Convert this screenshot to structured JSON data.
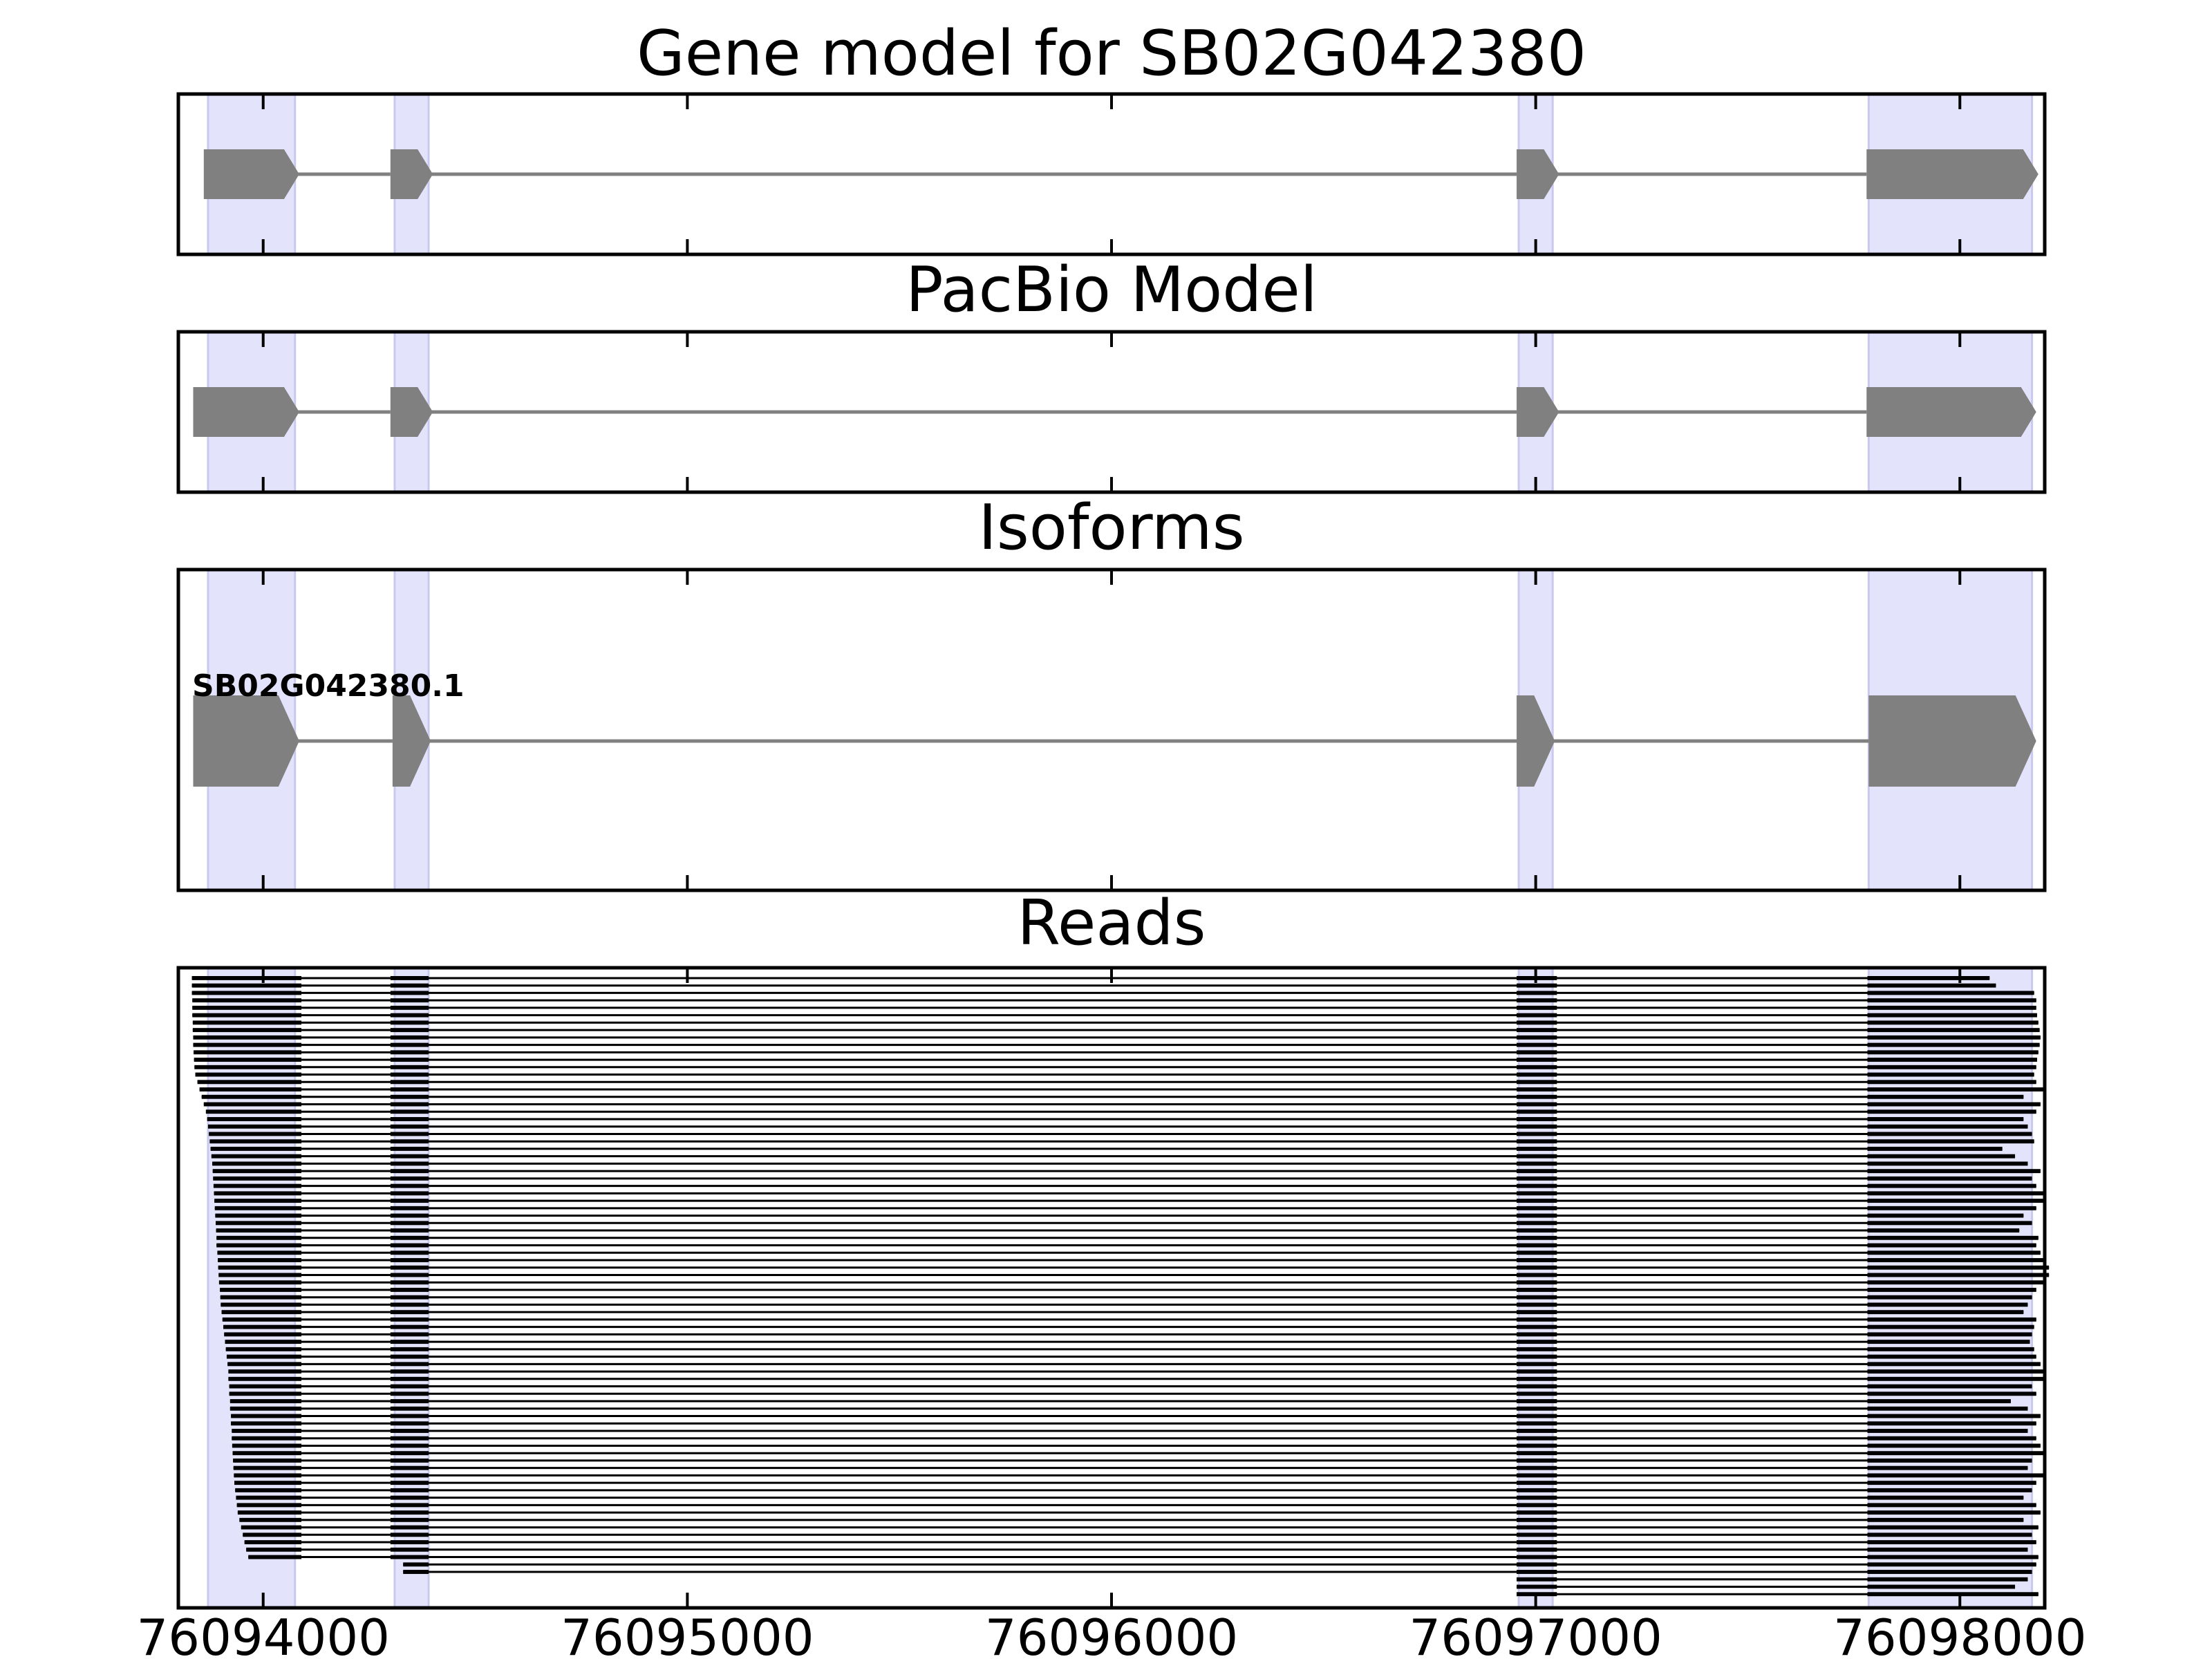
{
  "colors": {
    "exon_fill": "#808080",
    "intron_line": "#808080",
    "highlight": "#e3e3fb",
    "read_fill": "#000000",
    "axes": "#000000"
  },
  "chart_data": {
    "type": "gene_track",
    "xlim": [
      76093800,
      76098200
    ],
    "x_ticks": [
      76094000,
      76095000,
      76096000,
      76097000,
      76098000
    ],
    "x_tick_labels": [
      "76094000",
      "76095000",
      "76096000",
      "76097000",
      "76098000"
    ],
    "highlight_regions": [
      [
        76093870,
        76094075
      ],
      [
        76094310,
        76094390
      ],
      [
        76096960,
        76097040
      ],
      [
        76097785,
        76098170
      ]
    ],
    "panels": [
      {
        "id": "gene-model",
        "title": "Gene model for SB02G042380",
        "style": "thin",
        "exons": [
          [
            76093860,
            76094085
          ],
          [
            76094300,
            76094400
          ],
          [
            76096955,
            76097055
          ],
          [
            76097780,
            76098185
          ]
        ]
      },
      {
        "id": "pacbio-model",
        "title": "PacBio Model",
        "style": "thin",
        "exons": [
          [
            76093835,
            76094085
          ],
          [
            76094300,
            76094400
          ],
          [
            76096955,
            76097055
          ],
          [
            76097780,
            76098180
          ]
        ]
      },
      {
        "id": "isoforms",
        "title": "Isoforms",
        "style": "thick",
        "isoform_label": "SB02G042380.1",
        "exons": [
          [
            76093835,
            76094085
          ],
          [
            76094305,
            76094395
          ],
          [
            76096955,
            76097045
          ],
          [
            76097785,
            76098180
          ]
        ]
      },
      {
        "id": "reads",
        "title": "Reads",
        "style": "reads",
        "read_count": 84,
        "read_starts": [
          76093832,
          76093832,
          76093832,
          76093833,
          76093833,
          76093833,
          76093834,
          76093834,
          76093835,
          76093835,
          76093836,
          76093837,
          76093838,
          76093840,
          76093845,
          76093850,
          76093855,
          76093860,
          76093865,
          76093868,
          76093870,
          76093872,
          76093874,
          76093876,
          76093878,
          76093880,
          76093881,
          76093882,
          76093883,
          76093884,
          76093885,
          76093886,
          76093887,
          76093888,
          76093889,
          76093890,
          76093890,
          76093892,
          76093893,
          76093894,
          76093895,
          76093896,
          76093898,
          76093899,
          76093900,
          76093902,
          76093904,
          76093906,
          76093908,
          76093910,
          76093912,
          76093914,
          76093916,
          76093918,
          76093918,
          76093920,
          76093920,
          76093922,
          76093922,
          76093924,
          76093924,
          76093926,
          76093926,
          76093927,
          76093928,
          76093929,
          76093930,
          76093931,
          76093932,
          76093934,
          76093936,
          76093938,
          76093940,
          76093944,
          76093948,
          76093952,
          76093956,
          76093960,
          76093965,
          76094330,
          76094330,
          76096955,
          76096955,
          76096955
        ],
        "read_ends": [
          76098070,
          76098085,
          76098175,
          76098180,
          76098180,
          76098182,
          76098185,
          76098188,
          76098190,
          76098188,
          76098185,
          76098182,
          76098180,
          76098175,
          76098180,
          76098200,
          76098150,
          76098190,
          76098180,
          76098150,
          76098160,
          76098170,
          76098175,
          76098100,
          76098130,
          76098160,
          76098190,
          76098170,
          76098180,
          76098200,
          76098200,
          76098180,
          76098150,
          76098170,
          76098140,
          76098185,
          76098180,
          76098190,
          76098200,
          76098210,
          76098210,
          76098200,
          76098180,
          76098170,
          76098160,
          76098150,
          76098180,
          76098175,
          76098170,
          76098165,
          76098175,
          76098180,
          76098190,
          76098200,
          76098200,
          76098170,
          76098180,
          76098120,
          76098160,
          76098190,
          76098180,
          76098160,
          76098180,
          76098190,
          76098200,
          76098170,
          76098160,
          76098200,
          76098180,
          76098170,
          76098150,
          76098180,
          76098190,
          76098150,
          76098185,
          76098170,
          76098180,
          76098160,
          76098185,
          76098180,
          76098170,
          76098160,
          76098130,
          76098185
        ],
        "read_exons_mid": [
          [
            76094300,
            76094390
          ],
          [
            76096955,
            76097050
          ]
        ]
      }
    ]
  }
}
